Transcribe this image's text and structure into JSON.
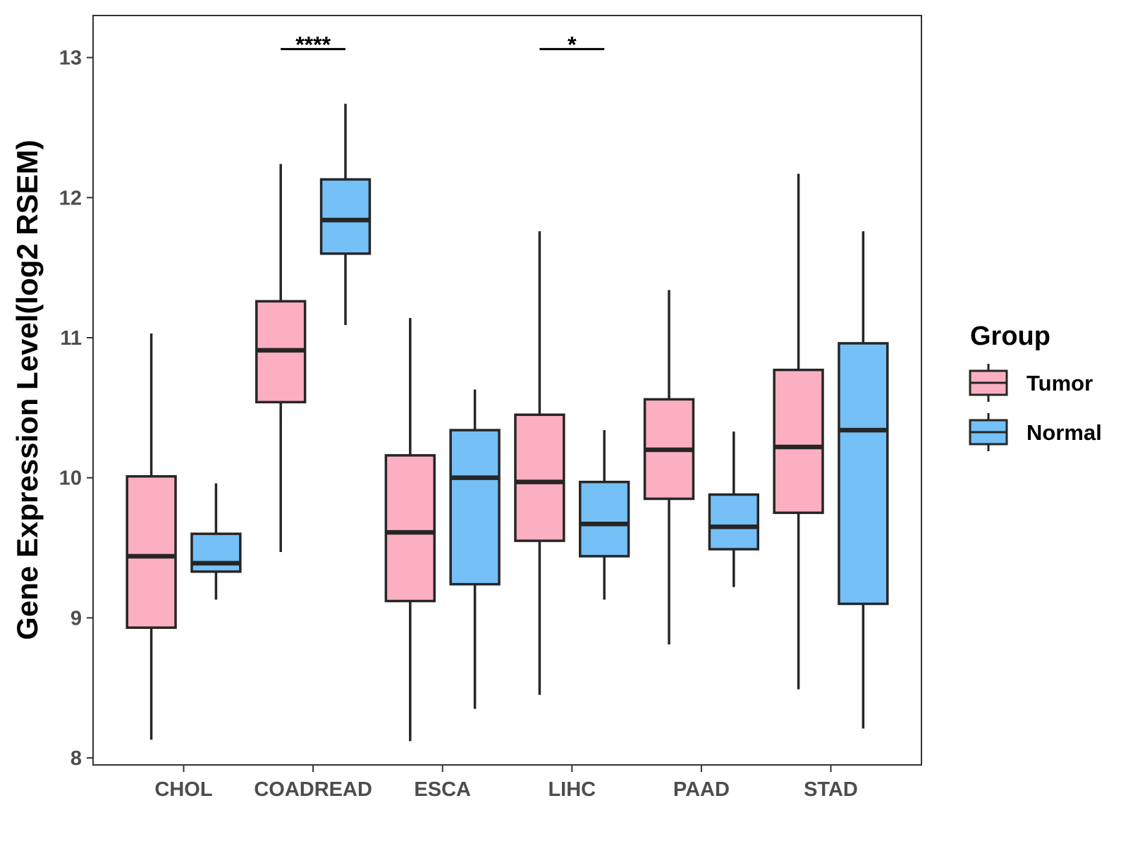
{
  "chart_data": {
    "type": "boxplot",
    "title": "",
    "xlabel": "",
    "ylabel": "Gene Expression Level(log2 RSEM)",
    "ylim": [
      7.95,
      13.3
    ],
    "yticks": [
      8,
      9,
      10,
      11,
      12,
      13
    ],
    "categories": [
      "CHOL",
      "COADREAD",
      "ESCA",
      "LIHC",
      "PAAD",
      "STAD"
    ],
    "legend": {
      "title": "Group",
      "position": "right",
      "items": [
        {
          "label": "Tumor",
          "color": "#FBAFC0"
        },
        {
          "label": "Normal",
          "color": "#74C0F7"
        }
      ]
    },
    "series": [
      {
        "name": "Tumor",
        "color": "#FBAFC0",
        "boxes": [
          {
            "category": "CHOL",
            "min": 8.13,
            "q1": 8.93,
            "median": 9.44,
            "q3": 10.01,
            "max": 11.03
          },
          {
            "category": "COADREAD",
            "min": 9.47,
            "q1": 10.54,
            "median": 10.91,
            "q3": 11.26,
            "max": 12.24
          },
          {
            "category": "ESCA",
            "min": 8.12,
            "q1": 9.12,
            "median": 9.61,
            "q3": 10.16,
            "max": 11.14
          },
          {
            "category": "LIHC",
            "min": 8.45,
            "q1": 9.55,
            "median": 9.97,
            "q3": 10.45,
            "max": 11.76
          },
          {
            "category": "PAAD",
            "min": 8.81,
            "q1": 9.85,
            "median": 10.2,
            "q3": 10.56,
            "max": 11.34
          },
          {
            "category": "STAD",
            "min": 8.49,
            "q1": 9.75,
            "median": 10.22,
            "q3": 10.77,
            "max": 12.17
          }
        ]
      },
      {
        "name": "Normal",
        "color": "#74C0F7",
        "boxes": [
          {
            "category": "CHOL",
            "min": 9.13,
            "q1": 9.33,
            "median": 9.39,
            "q3": 9.6,
            "max": 9.96
          },
          {
            "category": "COADREAD",
            "min": 11.09,
            "q1": 11.6,
            "median": 11.84,
            "q3": 12.13,
            "max": 12.67
          },
          {
            "category": "ESCA",
            "min": 8.35,
            "q1": 9.24,
            "median": 10.0,
            "q3": 10.34,
            "max": 10.63
          },
          {
            "category": "LIHC",
            "min": 9.13,
            "q1": 9.44,
            "median": 9.67,
            "q3": 9.97,
            "max": 10.34
          },
          {
            "category": "PAAD",
            "min": 9.22,
            "q1": 9.49,
            "median": 9.65,
            "q3": 9.88,
            "max": 10.33
          },
          {
            "category": "STAD",
            "min": 8.21,
            "q1": 9.1,
            "median": 10.34,
            "q3": 10.96,
            "max": 11.76
          }
        ]
      }
    ],
    "annotations": [
      {
        "category": "COADREAD",
        "label": "****",
        "y": 13.06
      },
      {
        "category": "LIHC",
        "label": "*",
        "y": 13.06
      }
    ]
  }
}
